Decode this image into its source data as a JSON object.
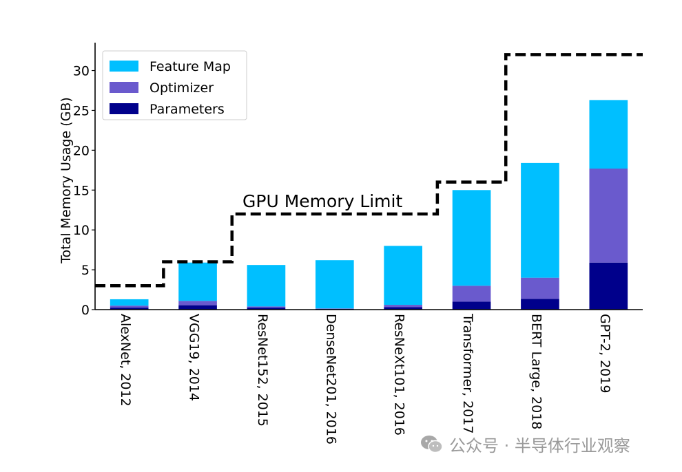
{
  "chart_data": {
    "type": "bar",
    "stacked": true,
    "categories": [
      "AlexNet, 2012",
      "VGG19, 2014",
      "ResNet152, 2015",
      "DenseNet201, 2016",
      "ResNeXt101, 2016",
      "Transformer, 2017",
      "BERT Large, 2018",
      "GPT-2, 2019"
    ],
    "series": [
      {
        "name": "Parameters",
        "color": "#00008b",
        "values": [
          0.25,
          0.55,
          0.25,
          0.1,
          0.3,
          1.0,
          1.35,
          5.9
        ]
      },
      {
        "name": "Optimizer",
        "color": "#6a5acd",
        "values": [
          0.25,
          0.55,
          0.15,
          0.05,
          0.3,
          2.0,
          2.65,
          11.8
        ]
      },
      {
        "name": "Feature Map",
        "color": "#00bfff",
        "values": [
          0.8,
          4.8,
          5.2,
          6.05,
          7.4,
          12.0,
          14.4,
          8.6
        ]
      }
    ],
    "ylabel": "Total Memory Usage (GB)",
    "xlabel": "",
    "ylim": [
      0,
      33.5
    ],
    "yticks": [
      0,
      5,
      10,
      15,
      20,
      25,
      30
    ],
    "legend": {
      "position": "top-left",
      "order": [
        "Feature Map",
        "Optimizer",
        "Parameters"
      ]
    },
    "grid": false,
    "gpu_limit": {
      "label": "GPU Memory Limit",
      "style": "dashed",
      "color": "#000000",
      "steps": [
        3,
        6,
        12,
        12,
        12,
        16,
        32,
        32
      ]
    }
  },
  "watermark": {
    "icon": "wechat-icon",
    "text": "公众号 · 半导体行业观察"
  }
}
